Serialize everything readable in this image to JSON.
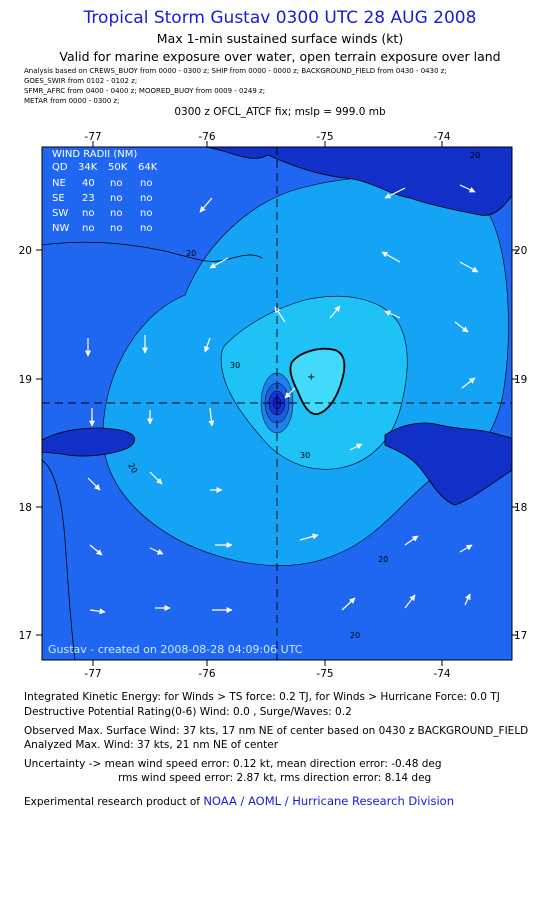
{
  "header": {
    "title": "Tropical Storm Gustav 0300 UTC 28 AUG 2008",
    "subtitle": "Max 1-min sustained surface winds (kt)",
    "validity": "Valid for marine exposure over water, open terrain exposure over land",
    "sources": [
      "Analysis based on  CREWS_BUOY from 0000 - 0300 z;  SHIP from 0000 - 0000 z;  BACKGROUND_FIELD from 0430 - 0430 z;",
      "GOES_SWIR from 0102 - 0102 z;",
      "SFMR_AFRC from 0400 - 0400 z;   MOORED_BUOY from 0009 - 0249 z;",
      "METAR from 0000 - 0300 z;"
    ],
    "fix": "0300 z OFCL_ATCF fix; mslp = 999.0 mb"
  },
  "map": {
    "lon_ticks": [
      "-77",
      "-76",
      "-75",
      "-74"
    ],
    "lat_ticks": [
      "20",
      "19",
      "18",
      "17"
    ],
    "contour_labels": [
      "20",
      "20",
      "20",
      "30",
      "30",
      "20",
      "20"
    ],
    "created": "Gustav  -  created on  2008-08-28  04:09:06  UTC",
    "colors": {
      "band_under_20": "#1f66f0",
      "band_20_30": "#14a3f5",
      "band_30_35": "#1ec2f7",
      "band_over_35": "#43d9fb",
      "land": "#1030c8",
      "eye": "#1436d8",
      "title_blue": "#1a1ad6"
    },
    "wind_radii": {
      "title": "WIND RADII (NM)",
      "header": [
        "QD",
        "34K",
        "50K",
        "64K"
      ],
      "rows": [
        [
          "NE",
          "40",
          "no",
          "no"
        ],
        [
          "SE",
          "23",
          "no",
          "no"
        ],
        [
          "SW",
          "no",
          "no",
          "no"
        ],
        [
          "NW",
          "no",
          "no",
          "no"
        ]
      ]
    }
  },
  "footer": {
    "ike": "Integrated Kinetic Energy:  for Winds > TS force: 0.2 TJ,  for Winds > Hurricane Force: 0.0 TJ",
    "dpr": "Destructive Potential Rating(0-6)   Wind: 0.0 , Surge/Waves: 0.2",
    "observed": "Observed Max. Surface Wind: 37 kts, 17 nm NE of center based on 0430 z BACKGROUND_FIELD",
    "analyzed": "Analyzed Max. Wind: 37 kts, 21 nm NE of center",
    "unc1": "Uncertainty -> mean wind speed error: 0.12 kt,   mean direction error:  -0.48 deg",
    "unc2": "rms wind speed error: 2.87 kt,   rms direction error: 8.14 deg",
    "credit_prefix": "Experimental research product of",
    "credit_link": "NOAA / AOML / Hurricane Research Division"
  }
}
